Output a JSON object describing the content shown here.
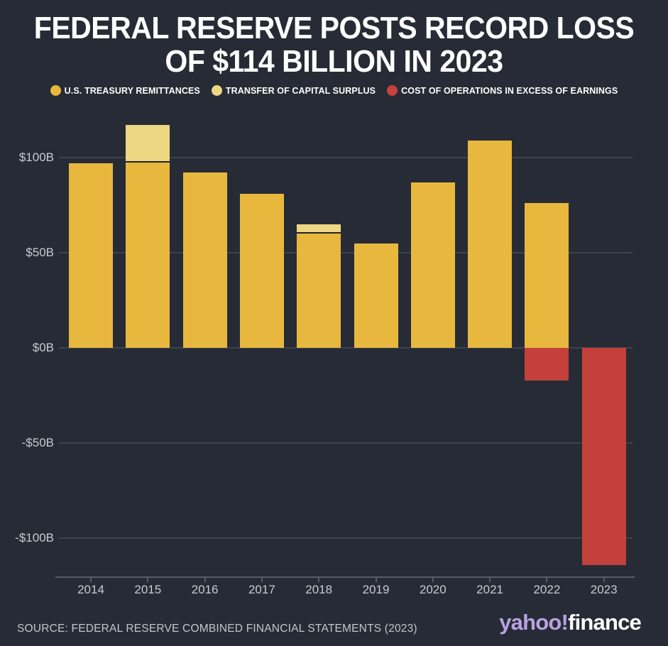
{
  "title": {
    "line1": "FEDERAL RESERVE POSTS RECORD LOSS",
    "line2": "OF $114 BILLION IN 2023"
  },
  "legend": [
    {
      "label": "U.S. TREASURY REMITTANCES",
      "color": "#E8B83E"
    },
    {
      "label": "TRANSFER OF CAPITAL SURPLUS",
      "color": "#EDD783"
    },
    {
      "label": "COST OF OPERATIONS IN EXCESS OF EARNINGS",
      "color": "#C7413C"
    }
  ],
  "chart_data": {
    "type": "bar",
    "stacked": true,
    "title": "FEDERAL RESERVE POSTS RECORD LOSS OF $114 BILLION IN 2023",
    "categories": [
      "2014",
      "2015",
      "2016",
      "2017",
      "2018",
      "2019",
      "2020",
      "2021",
      "2022",
      "2023"
    ],
    "series": [
      {
        "name": "U.S. Treasury Remittances",
        "color": "#E8B83E",
        "values": [
          97,
          98,
          92,
          81,
          61,
          55,
          87,
          109,
          76,
          0
        ]
      },
      {
        "name": "Transfer of Capital Surplus",
        "color": "#EDD783",
        "values": [
          0,
          19,
          0,
          0,
          4,
          0,
          0,
          0,
          0,
          0
        ]
      },
      {
        "name": "Cost of Operations in Excess of Earnings",
        "color": "#C4403A",
        "values": [
          0,
          0,
          0,
          0,
          0,
          0,
          0,
          0,
          -17,
          -114
        ]
      }
    ],
    "y_ticks": [
      {
        "label": "$100B",
        "value": 100
      },
      {
        "label": "$50B",
        "value": 50
      },
      {
        "label": "$0B",
        "value": 0
      },
      {
        "label": "-$50B",
        "value": -50
      },
      {
        "label": "-$100B",
        "value": -100
      }
    ],
    "ylim": [
      -120,
      122
    ],
    "grid": true,
    "legend_position": "top",
    "xlabel": "",
    "ylabel": ""
  },
  "source": "SOURCE: FEDERAL RESERVE COMBINED FINANCIAL STATEMENTS (2023)",
  "branding": {
    "primary": "yahoo!",
    "secondary": "finance",
    "primary_color": "#B7A2E2",
    "secondary_color": "#FFFFFF"
  },
  "colors": {
    "background": "#262B35",
    "gridline": "#3D434E",
    "axis": "#575D68",
    "tick_label": "#C9CBD1",
    "title": "#FFFFFF"
  }
}
